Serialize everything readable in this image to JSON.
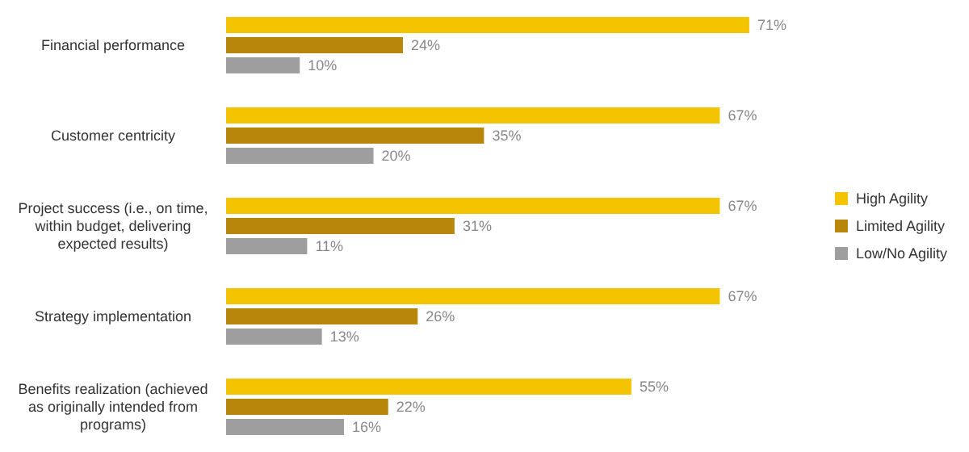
{
  "chart_data": {
    "type": "bar",
    "orientation": "horizontal",
    "categories": [
      "Financial performance",
      "Customer centricity",
      "Project success (i.e., on time, within budget, delivering expected results)",
      "Strategy implementation",
      "Benefits realization (achieved as originally intended from programs)"
    ],
    "series": [
      {
        "name": "High Agility",
        "color": "#f5c400",
        "values": [
          71,
          67,
          67,
          67,
          55
        ],
        "value_labels": [
          "71%",
          "67%",
          "67%",
          "67%",
          "55%"
        ]
      },
      {
        "name": "Limited Agility",
        "color": "#b8860b",
        "values": [
          24,
          35,
          31,
          26,
          22
        ],
        "value_labels": [
          "24%",
          "35%",
          "31%",
          "26%",
          "22%"
        ]
      },
      {
        "name": "Low/No Agility",
        "color": "#9e9e9e",
        "values": [
          10,
          20,
          11,
          13,
          16
        ],
        "value_labels": [
          "10%",
          "20%",
          "11%",
          "13%",
          "16%"
        ]
      }
    ],
    "legend": "right"
  }
}
